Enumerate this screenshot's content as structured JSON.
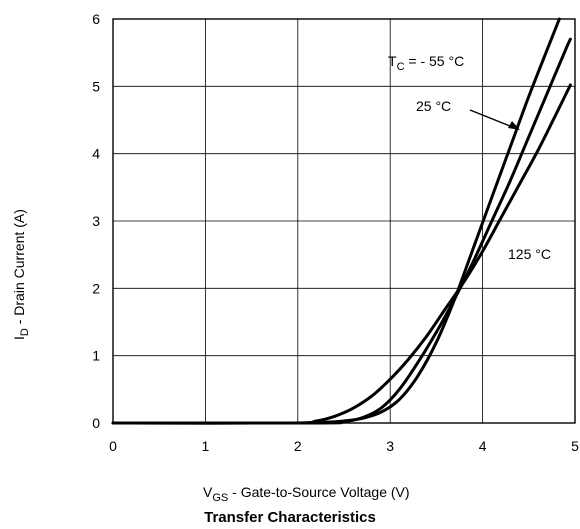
{
  "chart_data": {
    "type": "line",
    "title": "Transfer Characteristics",
    "xlabel": {
      "main": "V",
      "sub": "GS",
      "rest": "  -  Gate-to-Source Voltage (V)"
    },
    "ylabel": {
      "main": "I",
      "sub": "D",
      "rest": "  -  Drain Current (A)"
    },
    "xlim": [
      0,
      5
    ],
    "ylim": [
      0,
      6
    ],
    "xticks": [
      "0",
      "1",
      "2",
      "3",
      "4",
      "5"
    ],
    "yticks": [
      "0",
      "1",
      "2",
      "3",
      "4",
      "5",
      "6"
    ],
    "grid": true,
    "annotations": {
      "tc_prefix": "T",
      "tc_sub": "C",
      "tc_rest": " = - 55 °C",
      "t25": "25 °C",
      "t125": "125 °C"
    },
    "series": [
      {
        "name": "-55 °C",
        "x": [
          0,
          2.0,
          2.3,
          2.5,
          2.7,
          2.9,
          3.1,
          3.3,
          3.5,
          3.7,
          3.9,
          4.1,
          4.3,
          4.5,
          4.7,
          4.83
        ],
        "y": [
          0,
          0,
          0.01,
          0.03,
          0.07,
          0.16,
          0.35,
          0.7,
          1.2,
          1.85,
          2.6,
          3.35,
          4.1,
          4.85,
          5.55,
          6.0
        ]
      },
      {
        "name": "25 °C",
        "x": [
          0,
          2.2,
          2.5,
          2.7,
          2.9,
          3.1,
          3.3,
          3.5,
          3.7,
          3.9,
          4.1,
          4.3,
          4.5,
          4.7,
          4.9,
          4.95
        ],
        "y": [
          0,
          0,
          0.02,
          0.08,
          0.22,
          0.5,
          0.9,
          1.35,
          1.85,
          2.4,
          3.0,
          3.6,
          4.25,
          4.9,
          5.55,
          5.7
        ]
      },
      {
        "name": "125 °C",
        "x": [
          0,
          1.9,
          2.2,
          2.4,
          2.6,
          2.8,
          3.0,
          3.2,
          3.4,
          3.6,
          3.8,
          4.0,
          4.2,
          4.4,
          4.6,
          4.8,
          4.95
        ],
        "y": [
          0,
          0,
          0.03,
          0.1,
          0.22,
          0.4,
          0.65,
          0.95,
          1.3,
          1.7,
          2.1,
          2.55,
          3.05,
          3.55,
          4.05,
          4.6,
          5.02
        ]
      }
    ]
  }
}
